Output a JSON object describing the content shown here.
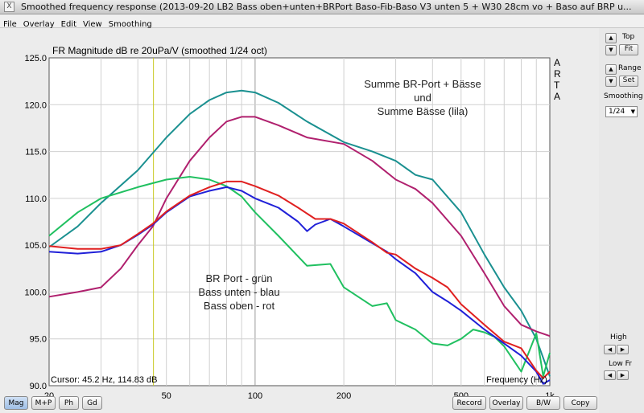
{
  "window": {
    "title": "Smoothed frequency response (2013-09-20 LB2 Bass oben+unten+BRPort Baso-Fib-Baso V3 unten 5 + W30 28cm vo + Baso auf BRP u...",
    "close_glyph": "X"
  },
  "menu": {
    "items": [
      "File",
      "Overlay",
      "Edit",
      "View",
      "Smoothing"
    ]
  },
  "plot": {
    "title": "FR Magnitude dB re 20uPa/V (smoothed 1/24 oct)",
    "brand_letters": [
      "A",
      "R",
      "T",
      "A"
    ],
    "cursor_text": "Cursor: 45.2 Hz, 114.83 dB",
    "xlabel": "Frequency (Hz)",
    "annotation_top": [
      "Summe BR-Port + Bässe",
      "und",
      "Summe Bässe (lila)"
    ],
    "annotation_bottom": [
      "BR Port - grün",
      "Bass unten - blau",
      "Bass oben - rot"
    ]
  },
  "chart_data": {
    "type": "line",
    "xscale": "log",
    "xlim": [
      20,
      1000
    ],
    "ylim": [
      90,
      125
    ],
    "x_ticks": [
      "20",
      "50",
      "100",
      "200",
      "500",
      "1k"
    ],
    "y_ticks": [
      "90.0",
      "95.0",
      "100.0",
      "105.0",
      "110.0",
      "115.0",
      "120.0",
      "125.0"
    ],
    "cursor_hz": 45.2,
    "grid": true,
    "series": [
      {
        "color": "#1a9090",
        "points": [
          [
            20,
            104.8
          ],
          [
            25,
            107
          ],
          [
            30,
            109.5
          ],
          [
            40,
            113
          ],
          [
            50,
            116.5
          ],
          [
            60,
            119
          ],
          [
            70,
            120.5
          ],
          [
            80,
            121.3
          ],
          [
            90,
            121.5
          ],
          [
            100,
            121.3
          ],
          [
            120,
            120.2
          ],
          [
            150,
            118.2
          ],
          [
            200,
            116
          ],
          [
            250,
            115
          ],
          [
            300,
            114
          ],
          [
            350,
            112.5
          ],
          [
            400,
            112
          ],
          [
            500,
            108.5
          ],
          [
            600,
            104
          ],
          [
            700,
            100.5
          ],
          [
            800,
            98
          ],
          [
            900,
            95
          ],
          [
            1000,
            91
          ]
        ]
      },
      {
        "color": "#b0206e",
        "points": [
          [
            20,
            99.5
          ],
          [
            25,
            100
          ],
          [
            30,
            100.5
          ],
          [
            35,
            102.5
          ],
          [
            40,
            105
          ],
          [
            45,
            107
          ],
          [
            50,
            110
          ],
          [
            60,
            114
          ],
          [
            70,
            116.5
          ],
          [
            80,
            118.2
          ],
          [
            90,
            118.7
          ],
          [
            100,
            118.7
          ],
          [
            120,
            117.8
          ],
          [
            150,
            116.5
          ],
          [
            200,
            115.8
          ],
          [
            250,
            114
          ],
          [
            300,
            112
          ],
          [
            350,
            111
          ],
          [
            400,
            109.5
          ],
          [
            500,
            106
          ],
          [
            600,
            102
          ],
          [
            700,
            98.5
          ],
          [
            800,
            96.5
          ],
          [
            900,
            95.8
          ],
          [
            1000,
            95.3
          ]
        ]
      },
      {
        "color": "#20c060",
        "points": [
          [
            20,
            106
          ],
          [
            25,
            108.5
          ],
          [
            30,
            110
          ],
          [
            40,
            111.2
          ],
          [
            50,
            112
          ],
          [
            60,
            112.3
          ],
          [
            70,
            112
          ],
          [
            80,
            111.3
          ],
          [
            90,
            110.2
          ],
          [
            100,
            108.5
          ],
          [
            120,
            106
          ],
          [
            150,
            102.8
          ],
          [
            180,
            103
          ],
          [
            200,
            100.5
          ],
          [
            250,
            98.5
          ],
          [
            280,
            98.8
          ],
          [
            300,
            97
          ],
          [
            350,
            96
          ],
          [
            400,
            94.5
          ],
          [
            450,
            94.3
          ],
          [
            500,
            95
          ],
          [
            550,
            96
          ],
          [
            600,
            95.7
          ],
          [
            650,
            95.2
          ],
          [
            700,
            94.2
          ],
          [
            800,
            91.5
          ],
          [
            900,
            95.6
          ],
          [
            950,
            91
          ],
          [
            1000,
            93.5
          ]
        ]
      },
      {
        "color": "#2020d8",
        "points": [
          [
            20,
            104.3
          ],
          [
            25,
            104.1
          ],
          [
            30,
            104.3
          ],
          [
            35,
            105
          ],
          [
            40,
            106.1
          ],
          [
            45,
            107.2
          ],
          [
            50,
            108.5
          ],
          [
            60,
            110.2
          ],
          [
            70,
            110.8
          ],
          [
            80,
            111.2
          ],
          [
            90,
            110.8
          ],
          [
            100,
            110
          ],
          [
            120,
            109
          ],
          [
            140,
            107.5
          ],
          [
            150,
            106.5
          ],
          [
            160,
            107.2
          ],
          [
            180,
            107.8
          ],
          [
            200,
            107
          ],
          [
            250,
            105.2
          ],
          [
            280,
            104.3
          ],
          [
            300,
            103.5
          ],
          [
            350,
            102
          ],
          [
            400,
            100
          ],
          [
            450,
            99
          ],
          [
            500,
            98
          ],
          [
            600,
            96
          ],
          [
            700,
            94.5
          ],
          [
            800,
            93.2
          ],
          [
            900,
            91.5
          ],
          [
            950,
            90.2
          ],
          [
            1000,
            90.6
          ]
        ]
      },
      {
        "color": "#e02020",
        "points": [
          [
            20,
            104.9
          ],
          [
            25,
            104.6
          ],
          [
            30,
            104.6
          ],
          [
            35,
            105
          ],
          [
            40,
            106.2
          ],
          [
            45,
            107.3
          ],
          [
            50,
            108.6
          ],
          [
            60,
            110.3
          ],
          [
            70,
            111.2
          ],
          [
            80,
            111.8
          ],
          [
            90,
            111.8
          ],
          [
            100,
            111.3
          ],
          [
            120,
            110.3
          ],
          [
            140,
            109
          ],
          [
            160,
            107.8
          ],
          [
            180,
            107.8
          ],
          [
            200,
            107.3
          ],
          [
            250,
            105.3
          ],
          [
            280,
            104.2
          ],
          [
            300,
            104
          ],
          [
            350,
            102.5
          ],
          [
            400,
            101.5
          ],
          [
            450,
            100.5
          ],
          [
            500,
            98.7
          ],
          [
            600,
            96.5
          ],
          [
            700,
            94.7
          ],
          [
            800,
            94
          ],
          [
            900,
            91.6
          ],
          [
            950,
            90.8
          ],
          [
            1000,
            91.5
          ]
        ]
      }
    ]
  },
  "side": {
    "top_label": "Top",
    "fit_label": "Fit",
    "range_label": "Range",
    "set_label": "Set",
    "smoothing_label": "Smoothing",
    "smoothing_value": "1/24",
    "high_label": "High",
    "lowfr_label": "Low Fr",
    "up_glyph": "▲",
    "down_glyph": "▼",
    "left_glyph": "◀",
    "right_glyph": "▶"
  },
  "bottom": {
    "left_buttons": [
      "Mag",
      "M+P",
      "Ph",
      "Gd"
    ],
    "right_buttons": [
      "Record",
      "Overlay",
      "B/W",
      "Copy"
    ]
  }
}
